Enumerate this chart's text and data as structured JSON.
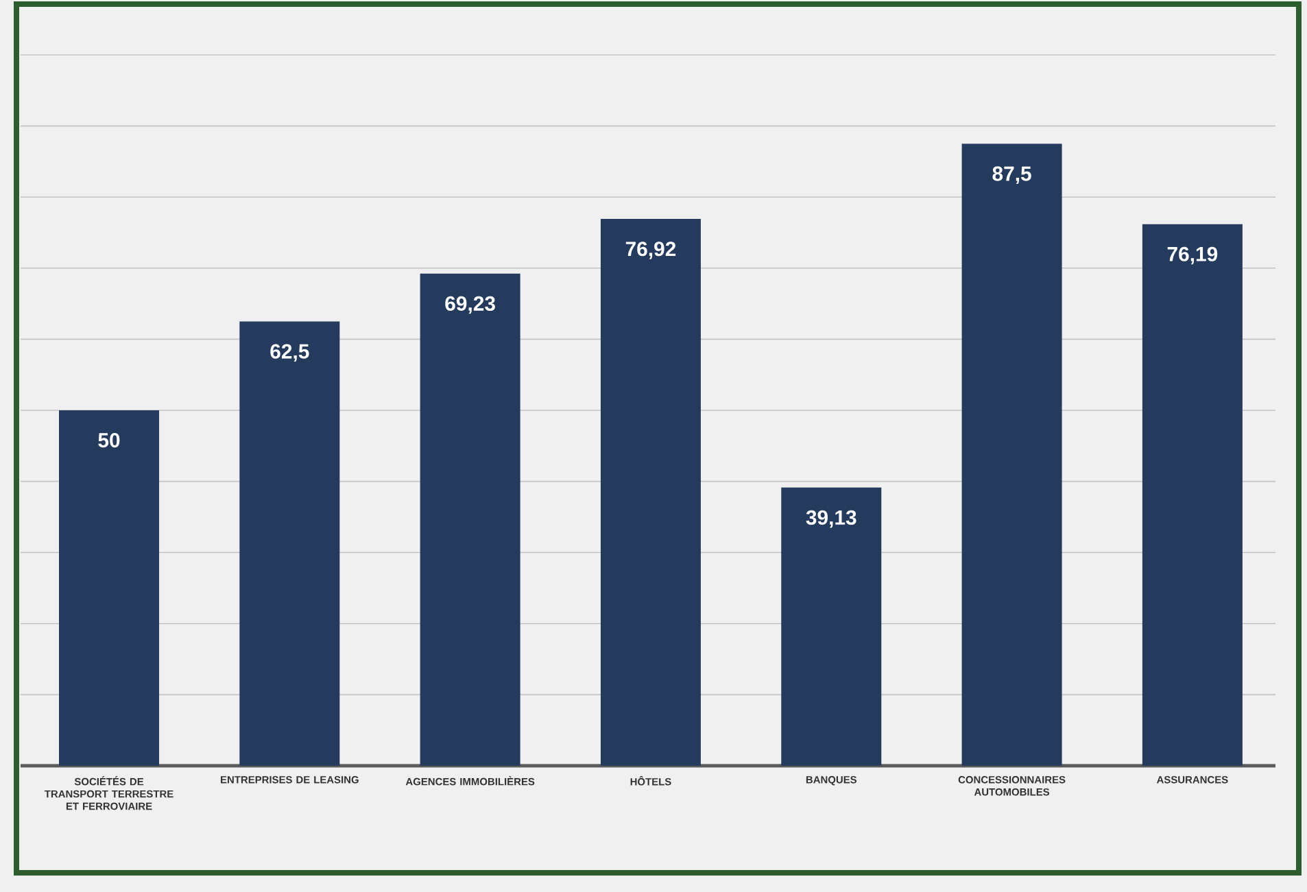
{
  "chart_data": {
    "type": "bar",
    "categories": [
      "SOCIÉTÉS DE TRANSPORT TERRESTRE ET FERROVIAIRE",
      "ENTREPRISES DE LEASING",
      "AGENCES IMMOBILIÈRES",
      "HÔTELS",
      "BANQUES",
      "CONCESSIONNAIRES AUTOMOBILES",
      "ASSURANCES"
    ],
    "values": [
      50,
      62.5,
      69.23,
      76.92,
      39.13,
      87.5,
      76.19
    ],
    "value_labels": [
      "50",
      "62,5",
      "69,23",
      "76,92",
      "39,13",
      "87,5",
      "76,19"
    ],
    "color": "#243b5e",
    "ylim": [
      0,
      100
    ],
    "yticks": [
      {
        "value": 0,
        "label": null
      },
      {
        "value": 10,
        "label": null
      },
      {
        "value": 20,
        "label": null
      },
      {
        "value": 30,
        "label": null
      },
      {
        "value": 40,
        "label": null
      },
      {
        "value": 50,
        "label": null
      },
      {
        "value": 60,
        "label": null
      },
      {
        "value": 70,
        "label": null
      },
      {
        "value": 80,
        "label": null
      },
      {
        "value": 90,
        "label": null
      },
      {
        "value": 100,
        "label": null
      }
    ],
    "tick_labels": "x",
    "grid": "y"
  }
}
